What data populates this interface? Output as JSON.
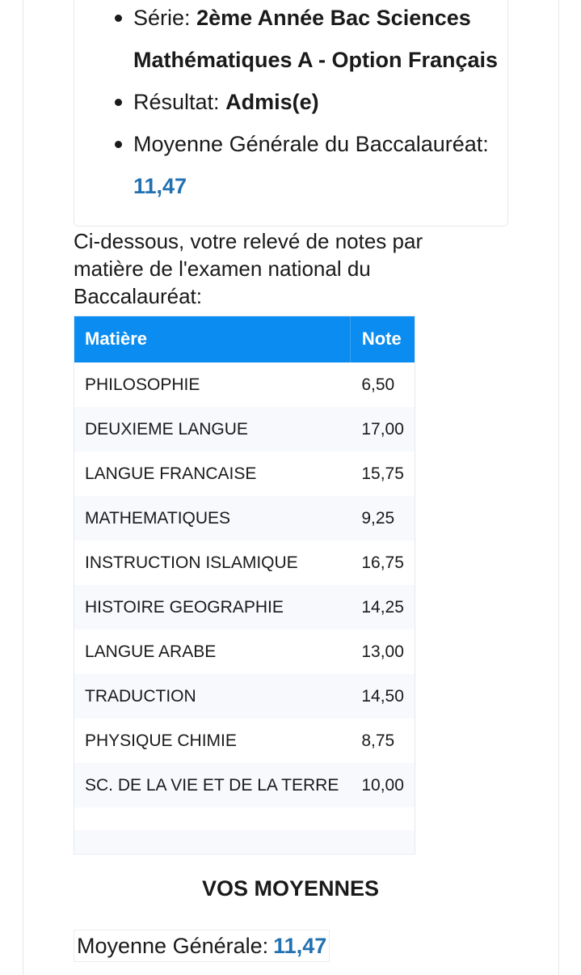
{
  "info": {
    "serie_label": "Série:",
    "serie_value_line1": "2ème Année Bac Sciences",
    "serie_value_line2": "Mathématiques A - Option Français",
    "resultat_label": "Résultat:",
    "resultat_value": "Admis(e)",
    "moyenne_label": "Moyenne Générale du Baccalauréat:",
    "moyenne_value": "11,47"
  },
  "intro_line1": "Ci-dessous, votre relevé de notes par",
  "intro_line2": "matière de l'examen national du",
  "intro_line3": "Baccalauréat:",
  "table": {
    "headers": [
      "Matière",
      "Note"
    ],
    "rows": [
      {
        "matiere": "PHILOSOPHIE",
        "note": "6,50"
      },
      {
        "matiere": "DEUXIEME LANGUE",
        "note": "17,00"
      },
      {
        "matiere": "LANGUE FRANCAISE",
        "note": "15,75"
      },
      {
        "matiere": "MATHEMATIQUES",
        "note": "9,25"
      },
      {
        "matiere": "INSTRUCTION ISLAMIQUE",
        "note": "16,75"
      },
      {
        "matiere": "HISTOIRE GEOGRAPHIE",
        "note": "14,25"
      },
      {
        "matiere": "LANGUE ARABE",
        "note": "13,00"
      },
      {
        "matiere": "TRADUCTION",
        "note": "14,50"
      },
      {
        "matiere": "PHYSIQUE CHIMIE",
        "note": "8,75"
      },
      {
        "matiere": "SC. DE LA VIE ET DE LA TERRE",
        "note": "10,00"
      }
    ]
  },
  "vos_moyennes": {
    "title": "VOS MOYENNES",
    "moyenne_label": "Moyenne Générale:",
    "moyenne_value": "11,47"
  },
  "colors": {
    "header_blue": "#0a8cf0",
    "average_blue": "#2271b1"
  }
}
